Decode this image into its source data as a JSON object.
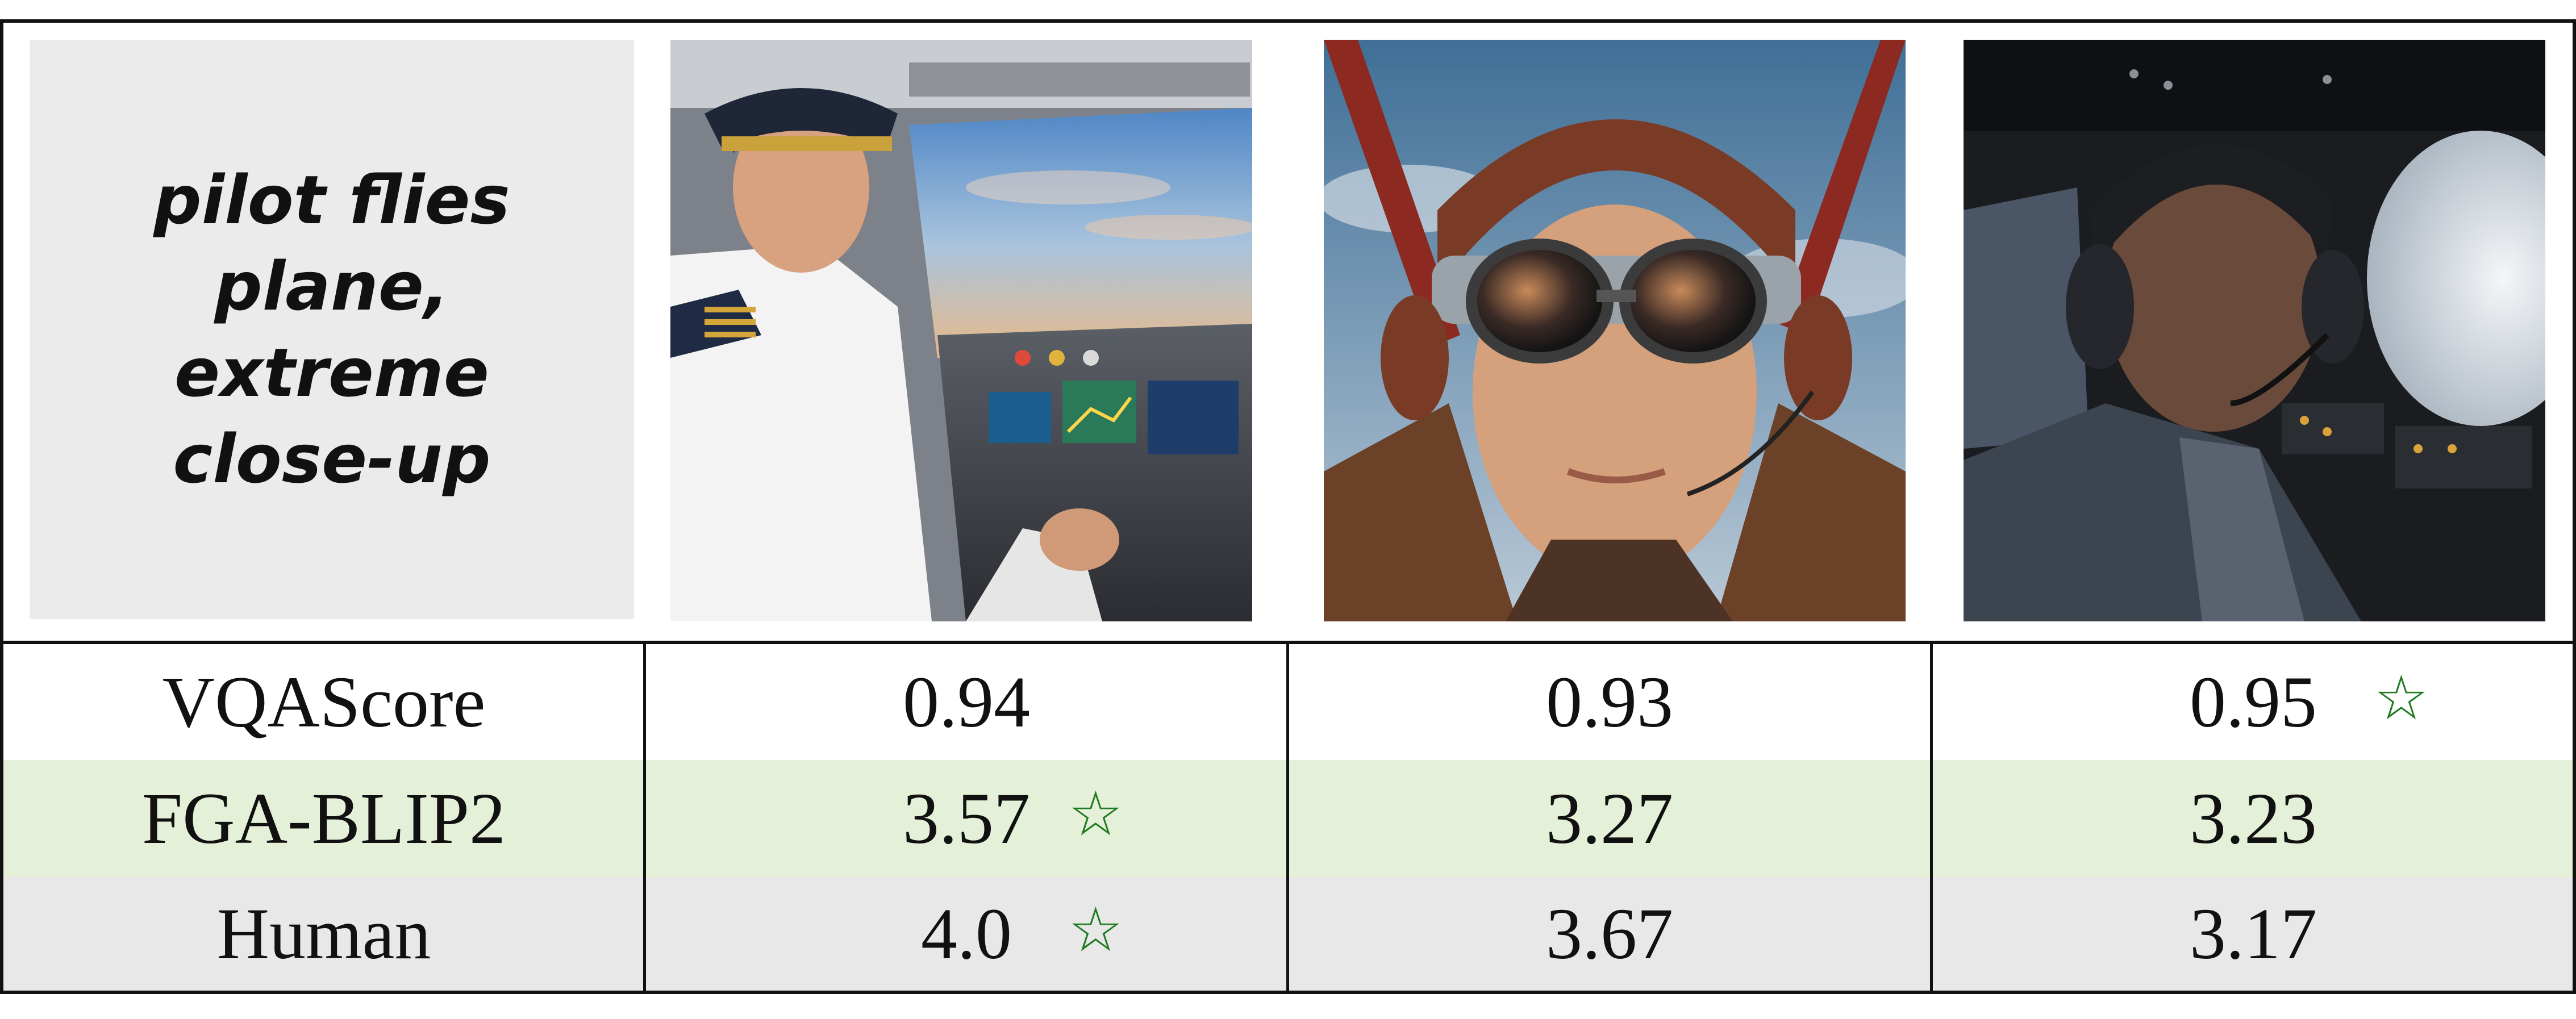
{
  "prompt": "pilot flies plane, extreme close-up",
  "images": [
    {
      "icon": "pilot-cockpit-photo"
    },
    {
      "icon": "aviator-goggles-photo"
    },
    {
      "icon": "dark-cockpit-photo"
    }
  ],
  "rows": [
    {
      "label": "VQAScore",
      "values": [
        "0.94",
        "0.93",
        "0.95"
      ],
      "best": 2
    },
    {
      "label": "FGA-BLIP2",
      "values": [
        "3.57",
        "3.27",
        "3.23"
      ],
      "best": 0
    },
    {
      "label": "Human",
      "values": [
        "4.0",
        "3.67",
        "3.17"
      ],
      "best": 0
    }
  ],
  "star_glyph": "☆",
  "colors": {
    "star": "#1f7a1f",
    "fga_row": "#e4f0d8",
    "human_row": "#e8e8e8"
  }
}
